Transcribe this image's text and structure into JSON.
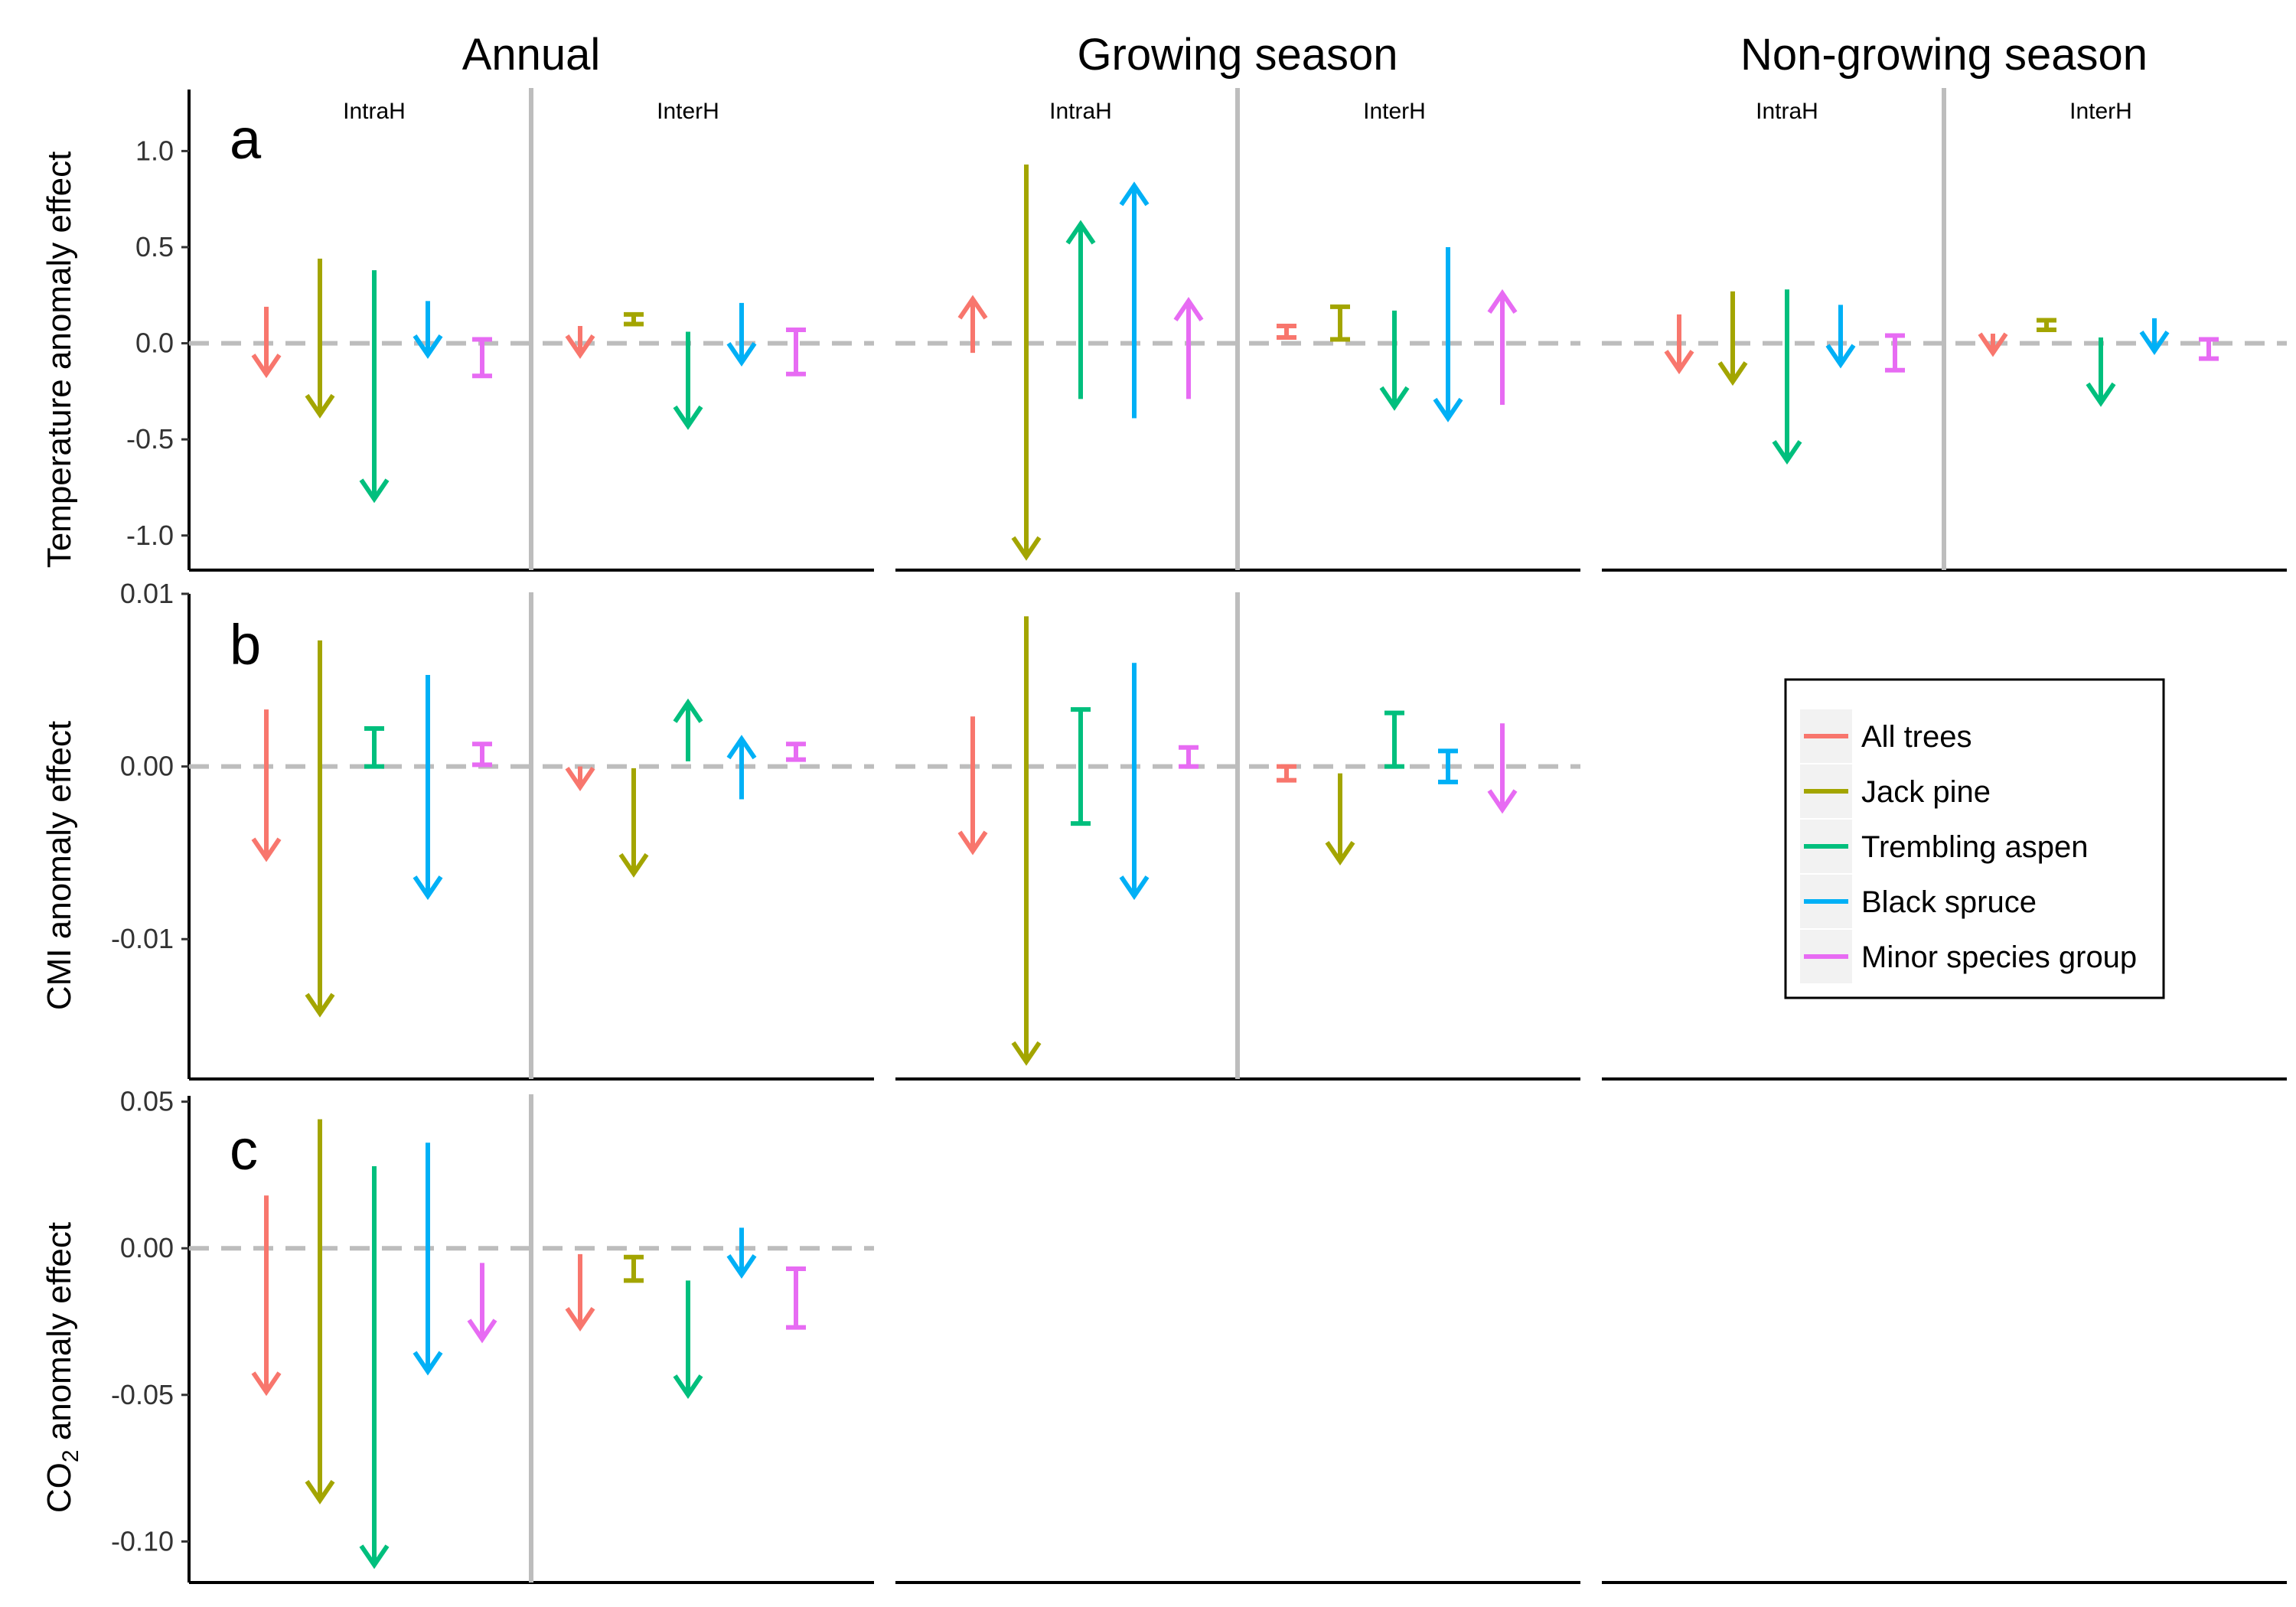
{
  "figure": {
    "column_titles": [
      "Annual",
      "Growing season",
      "Non-growing season"
    ],
    "sub_titles": [
      "IntraH",
      "InterH"
    ],
    "rows": [
      {
        "letter": "a",
        "ylabel": "Temperature anomaly effect"
      },
      {
        "letter": "b",
        "ylabel": "CMI anomaly effect"
      },
      {
        "letter": "c",
        "ylabel_main": "CO",
        "ylabel_sub": "2",
        "ylabel_rest": " anomaly effect"
      }
    ]
  },
  "legend": {
    "position": "inside panel b, non-growing season",
    "items": [
      {
        "label": "All trees",
        "color": "#F8766D"
      },
      {
        "label": "Jack pine",
        "color": "#A3A500"
      },
      {
        "label": "Trembling aspen",
        "color": "#00BF7D"
      },
      {
        "label": "Black spruce",
        "color": "#00B0F6"
      },
      {
        "label": "Minor species group",
        "color": "#E76BF3"
      }
    ]
  },
  "chart_data": {
    "type": "arrow-range",
    "grid": false,
    "reference_line": 0,
    "series_names": [
      "All trees",
      "Jack pine",
      "Trembling aspen",
      "Black spruce",
      "Minor species group"
    ],
    "panels": [
      {
        "row": "a",
        "column": "Annual",
        "ylim": [
          -1.18,
          1.32
        ],
        "yticks": [
          1.0,
          0.5,
          0.0,
          -0.5,
          -1.0
        ],
        "ytick_labels": [
          "1.0",
          "0.5",
          "0.0",
          "-0.5",
          "-1.0"
        ],
        "groups": {
          "IntraH": [
            {
              "species": "All trees",
              "from": 0.19,
              "to": -0.16,
              "shape": "arrow"
            },
            {
              "species": "Jack pine",
              "from": 0.44,
              "to": -0.37,
              "shape": "arrow"
            },
            {
              "species": "Trembling aspen",
              "from": 0.38,
              "to": -0.81,
              "shape": "arrow"
            },
            {
              "species": "Black spruce",
              "from": 0.22,
              "to": -0.06,
              "shape": "arrow"
            },
            {
              "species": "Minor species group",
              "from": 0.02,
              "to": -0.17,
              "shape": "bar"
            }
          ],
          "InterH": [
            {
              "species": "All trees",
              "from": 0.09,
              "to": -0.06,
              "shape": "arrow"
            },
            {
              "species": "Jack pine",
              "from": 0.15,
              "to": 0.1,
              "shape": "bar"
            },
            {
              "species": "Trembling aspen",
              "from": 0.06,
              "to": -0.43,
              "shape": "arrow"
            },
            {
              "species": "Black spruce",
              "from": 0.21,
              "to": -0.1,
              "shape": "arrow"
            },
            {
              "species": "Minor species group",
              "from": 0.07,
              "to": -0.16,
              "shape": "bar"
            }
          ]
        }
      },
      {
        "row": "a",
        "column": "Growing season",
        "groups": {
          "IntraH": [
            {
              "species": "All trees",
              "from": -0.05,
              "to": 0.23,
              "shape": "arrow"
            },
            {
              "species": "Jack pine",
              "from": 0.93,
              "to": -1.11,
              "shape": "arrow"
            },
            {
              "species": "Trembling aspen",
              "from": -0.29,
              "to": 0.62,
              "shape": "arrow"
            },
            {
              "species": "Black spruce",
              "from": -0.39,
              "to": 0.82,
              "shape": "arrow"
            },
            {
              "species": "Minor species group",
              "from": -0.29,
              "to": 0.22,
              "shape": "arrow"
            }
          ],
          "InterH": [
            {
              "species": "All trees",
              "from": 0.09,
              "to": 0.03,
              "shape": "bar"
            },
            {
              "species": "Jack pine",
              "from": 0.19,
              "to": 0.02,
              "shape": "bar"
            },
            {
              "species": "Trembling aspen",
              "from": 0.17,
              "to": -0.33,
              "shape": "arrow"
            },
            {
              "species": "Black spruce",
              "from": 0.5,
              "to": -0.39,
              "shape": "arrow"
            },
            {
              "species": "Minor species group",
              "from": -0.32,
              "to": 0.26,
              "shape": "arrow"
            }
          ]
        }
      },
      {
        "row": "a",
        "column": "Non-growing season",
        "groups": {
          "IntraH": [
            {
              "species": "All trees",
              "from": 0.15,
              "to": -0.14,
              "shape": "arrow"
            },
            {
              "species": "Jack pine",
              "from": 0.27,
              "to": -0.2,
              "shape": "arrow"
            },
            {
              "species": "Trembling aspen",
              "from": 0.28,
              "to": -0.61,
              "shape": "arrow"
            },
            {
              "species": "Black spruce",
              "from": 0.2,
              "to": -0.11,
              "shape": "arrow"
            },
            {
              "species": "Minor species group",
              "from": 0.04,
              "to": -0.14,
              "shape": "bar"
            }
          ],
          "InterH": [
            {
              "species": "All trees",
              "from": 0.05,
              "to": -0.05,
              "shape": "arrow"
            },
            {
              "species": "Jack pine",
              "from": 0.12,
              "to": 0.07,
              "shape": "bar"
            },
            {
              "species": "Trembling aspen",
              "from": 0.03,
              "to": -0.31,
              "shape": "arrow"
            },
            {
              "species": "Black spruce",
              "from": 0.13,
              "to": -0.04,
              "shape": "arrow"
            },
            {
              "species": "Minor species group",
              "from": 0.02,
              "to": -0.08,
              "shape": "bar"
            }
          ]
        }
      },
      {
        "row": "b",
        "column": "Annual",
        "ylim": [
          -0.0181,
          0.01
        ],
        "yticks": [
          0.01,
          0.0,
          -0.01
        ],
        "ytick_labels": [
          "0.01",
          "0.00",
          "-0.01"
        ],
        "groups": {
          "IntraH": [
            {
              "species": "All trees",
              "from": 0.0033,
              "to": -0.0053,
              "shape": "arrow"
            },
            {
              "species": "Jack pine",
              "from": 0.0073,
              "to": -0.0143,
              "shape": "arrow"
            },
            {
              "species": "Trembling aspen",
              "from": 0.0022,
              "to": 0.0,
              "shape": "bar"
            },
            {
              "species": "Black spruce",
              "from": 0.0053,
              "to": -0.0075,
              "shape": "arrow"
            },
            {
              "species": "Minor species group",
              "from": 0.0013,
              "to": 0.0001,
              "shape": "bar"
            }
          ],
          "InterH": [
            {
              "species": "All trees",
              "from": 0.0,
              "to": -0.0012,
              "shape": "arrow"
            },
            {
              "species": "Jack pine",
              "from": -0.0001,
              "to": -0.0062,
              "shape": "arrow"
            },
            {
              "species": "Trembling aspen",
              "from": 0.0003,
              "to": 0.0037,
              "shape": "arrow"
            },
            {
              "species": "Black spruce",
              "from": -0.0019,
              "to": 0.0016,
              "shape": "arrow"
            },
            {
              "species": "Minor species group",
              "from": 0.0013,
              "to": 0.0004,
              "shape": "bar"
            }
          ]
        }
      },
      {
        "row": "b",
        "column": "Growing season",
        "groups": {
          "IntraH": [
            {
              "species": "All trees",
              "from": 0.0029,
              "to": -0.0049,
              "shape": "arrow"
            },
            {
              "species": "Jack pine",
              "from": 0.0087,
              "to": -0.0171,
              "shape": "arrow"
            },
            {
              "species": "Trembling aspen",
              "from": 0.0033,
              "to": -0.0033,
              "shape": "bar"
            },
            {
              "species": "Black spruce",
              "from": 0.006,
              "to": -0.0075,
              "shape": "arrow"
            },
            {
              "species": "Minor species group",
              "from": 0.0011,
              "to": 0.0,
              "shape": "bar"
            }
          ],
          "InterH": [
            {
              "species": "All trees",
              "from": 0.0,
              "to": -0.0008,
              "shape": "bar"
            },
            {
              "species": "Jack pine",
              "from": -0.0004,
              "to": -0.0055,
              "shape": "arrow"
            },
            {
              "species": "Trembling aspen",
              "from": 0.0031,
              "to": 0.0,
              "shape": "bar"
            },
            {
              "species": "Black spruce",
              "from": 0.0009,
              "to": -0.0009,
              "shape": "bar"
            },
            {
              "species": "Minor species group",
              "from": 0.0025,
              "to": -0.0025,
              "shape": "arrow"
            }
          ]
        }
      },
      {
        "row": "c",
        "column": "Annual",
        "ylim": [
          -0.114,
          0.052
        ],
        "yticks": [
          0.05,
          0.0,
          -0.05,
          -0.1
        ],
        "ytick_labels": [
          "0.05",
          "0.00",
          "-0.05",
          "-0.10"
        ],
        "groups": {
          "IntraH": [
            {
              "species": "All trees",
              "from": 0.018,
              "to": -0.049,
              "shape": "arrow"
            },
            {
              "species": "Jack pine",
              "from": 0.044,
              "to": -0.086,
              "shape": "arrow"
            },
            {
              "species": "Trembling aspen",
              "from": 0.028,
              "to": -0.108,
              "shape": "arrow"
            },
            {
              "species": "Black spruce",
              "from": 0.036,
              "to": -0.042,
              "shape": "arrow"
            },
            {
              "species": "Minor species group",
              "from": -0.005,
              "to": -0.031,
              "shape": "arrow"
            }
          ],
          "InterH": [
            {
              "species": "All trees",
              "from": -0.002,
              "to": -0.027,
              "shape": "arrow"
            },
            {
              "species": "Jack pine",
              "from": -0.003,
              "to": -0.011,
              "shape": "bar"
            },
            {
              "species": "Trembling aspen",
              "from": -0.011,
              "to": -0.05,
              "shape": "arrow"
            },
            {
              "species": "Black spruce",
              "from": 0.007,
              "to": -0.009,
              "shape": "arrow"
            },
            {
              "species": "Minor species group",
              "from": -0.007,
              "to": -0.027,
              "shape": "bar"
            }
          ]
        }
      }
    ]
  }
}
